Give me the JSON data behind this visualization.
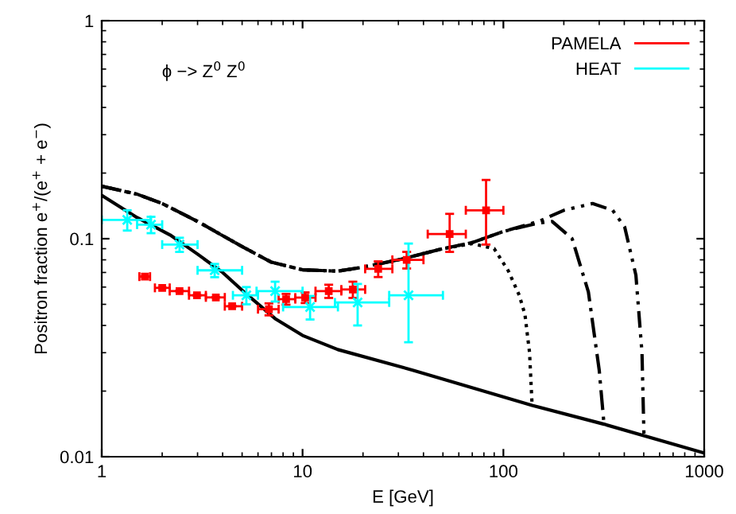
{
  "chart_data": {
    "type": "line",
    "xlabel": "E [GeV]",
    "ylabel": "Positron fraction e$^{+}$/(e$^{+}$ + e$^{−}$)",
    "annotations": [
      "ϕ −> Z$^{0}$ Z$^{0}$"
    ],
    "log": "xy",
    "xlim": [
      1,
      1000
    ],
    "ylim": [
      0.01,
      1
    ],
    "xticks": [
      1,
      10,
      100,
      1000
    ],
    "yticks": [
      0.01,
      0.1,
      1
    ],
    "grid": false,
    "legend": "top right",
    "series": [
      {
        "color": "#000000",
        "line_style": "solid",
        "marker": "none",
        "x": [
          1,
          1.5,
          2.19,
          3,
          4,
          5,
          7.3,
          10,
          15,
          35.6,
          139,
          317,
          1000
        ],
        "values": [
          0.158,
          0.125,
          0.104,
          0.085,
          0.07,
          0.058,
          0.043,
          0.036,
          0.031,
          0.0249,
          0.0172,
          0.0141,
          0.0104
        ]
      },
      {
        "color": "#000000",
        "line_style": "dotted",
        "marker": "none",
        "x": [
          1,
          1.5,
          2,
          3,
          5,
          7,
          10,
          15,
          20,
          30,
          50,
          70,
          90,
          106,
          120,
          128,
          135,
          139
        ],
        "values": [
          0.174,
          0.16,
          0.145,
          0.12,
          0.092,
          0.078,
          0.072,
          0.071,
          0.074,
          0.08,
          0.09,
          0.095,
          0.09,
          0.071,
          0.055,
          0.045,
          0.03,
          0.0172
        ]
      },
      {
        "color": "#000000",
        "line_style": "dashdot",
        "marker": "none",
        "x": [
          1,
          1.5,
          2,
          3,
          5,
          7,
          10,
          15,
          20,
          30,
          50,
          70,
          100,
          150,
          175,
          220,
          265,
          300,
          317
        ],
        "values": [
          0.174,
          0.16,
          0.145,
          0.12,
          0.092,
          0.078,
          0.072,
          0.071,
          0.074,
          0.08,
          0.09,
          0.096,
          0.108,
          0.118,
          0.12,
          0.1,
          0.057,
          0.025,
          0.0141
        ]
      },
      {
        "color": "#000000",
        "line_style": "dashdotdot",
        "marker": "none",
        "x": [
          1,
          1.5,
          2,
          3,
          5,
          7,
          10,
          15,
          20,
          30,
          50,
          70,
          100,
          150,
          200,
          278,
          350,
          402,
          457,
          490,
          501
        ],
        "values": [
          0.174,
          0.16,
          0.145,
          0.12,
          0.092,
          0.078,
          0.072,
          0.071,
          0.074,
          0.08,
          0.09,
          0.096,
          0.108,
          0.12,
          0.135,
          0.145,
          0.135,
          0.113,
          0.068,
          0.03,
          0.0127
        ]
      },
      {
        "type": "scatter",
        "name": "PAMELA",
        "color": "#ff0000",
        "marker": "square",
        "x": [
          1.64,
          2.0,
          2.44,
          2.98,
          3.7,
          4.46,
          6.8,
          8.28,
          10.3,
          13.5,
          17.8,
          23.8,
          33,
          54,
          82
        ],
        "values": [
          0.067,
          0.0595,
          0.0575,
          0.055,
          0.0538,
          0.049,
          0.0475,
          0.0528,
          0.0537,
          0.0575,
          0.0585,
          0.0727,
          0.08,
          0.105,
          0.135
        ],
        "errors": [
          null,
          null,
          null,
          null,
          null,
          null,
          0.003,
          0.003,
          0.003,
          0.004,
          0.005,
          0.006,
          0.007,
          [
            0.087,
            0.13
          ],
          [
            0.094,
            0.186
          ]
        ],
        "xerrors": [
          [
            1.54,
            1.74
          ],
          [
            1.84,
            2.18
          ],
          [
            2.18,
            2.72
          ],
          [
            2.72,
            3.3
          ],
          [
            3.3,
            4.1
          ],
          [
            4.1,
            5.0
          ],
          [
            6.0,
            7.6
          ],
          [
            7.6,
            9.2
          ],
          [
            9.2,
            11.6
          ],
          [
            11.6,
            15.6
          ],
          [
            15.6,
            20.5
          ],
          [
            20.5,
            28
          ],
          [
            28,
            40
          ],
          [
            42,
            65
          ],
          [
            65,
            100
          ]
        ]
      },
      {
        "type": "scatter",
        "name": "HEAT",
        "color": "#00ffff",
        "marker": "cross",
        "x": [
          1.34,
          1.76,
          2.44,
          3.65,
          5.25,
          7.3,
          10.9,
          18.8,
          33.7
        ],
        "values": [
          0.122,
          0.116,
          0.094,
          0.0716,
          0.055,
          0.0575,
          0.0486,
          0.051,
          0.055
        ],
        "errors": [
          0.013,
          0.01,
          0.007,
          0.005,
          0.005,
          0.006,
          0.006,
          [
            0.04,
            0.062
          ],
          [
            0.0335,
            0.095
          ]
        ],
        "xerrors": [
          [
            1.0,
            1.75
          ],
          [
            1.5,
            2.0
          ],
          [
            2.0,
            3.0
          ],
          [
            3.0,
            5.0
          ],
          [
            4.5,
            6.0
          ],
          [
            5.9,
            10
          ],
          [
            8,
            15
          ],
          [
            14.5,
            27
          ],
          [
            27,
            50
          ]
        ]
      }
    ]
  }
}
